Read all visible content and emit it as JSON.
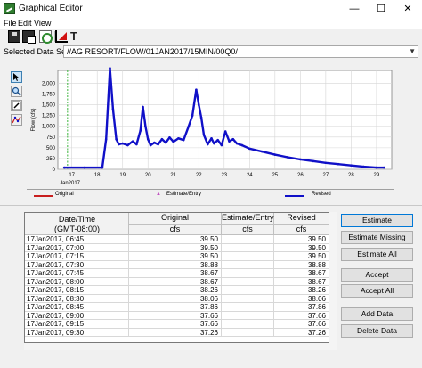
{
  "window": {
    "title": "Graphical Editor",
    "minimize": "—",
    "maximize": "☐",
    "close": "✕"
  },
  "menu": [
    "File",
    "Edit",
    "View"
  ],
  "toolbar": {
    "icons": [
      "save-icon",
      "save-as-icon",
      "refresh-icon",
      "chart-icon",
      "text-tool-icon"
    ],
    "tt_glyph": "T"
  },
  "dataset": {
    "label": "Selected Data Set:",
    "value": "//AG RESORT/FLOW/01JAN2017/15MIN/00Q0/",
    "arrow": "▼"
  },
  "tools": [
    "select-arrow-icon",
    "zoom-icon",
    "edit-pencil-icon",
    "draw-line-icon"
  ],
  "chart_data": {
    "type": "line",
    "ylabel": "Flow (cfs)",
    "xlabel": "",
    "ylim": [
      0,
      2300
    ],
    "yticks": [
      "0",
      "250",
      "500",
      "750",
      "1,000",
      "1,250",
      "1,500",
      "1,750",
      "2,000"
    ],
    "ytick_values": [
      0,
      250,
      500,
      750,
      1000,
      1250,
      1500,
      1750,
      2000
    ],
    "xlim": [
      16.45,
      29.6
    ],
    "xticks": [
      "17",
      "18",
      "19",
      "20",
      "21",
      "22",
      "23",
      "24",
      "25",
      "26",
      "27",
      "28",
      "29"
    ],
    "xtick_values": [
      17,
      18,
      19,
      20,
      21,
      22,
      23,
      24,
      25,
      26,
      27,
      28,
      29
    ],
    "xsub": "Jan2017",
    "marker": {
      "x": 16.83,
      "color": "#3cb43c"
    },
    "grid": true,
    "series": [
      {
        "name": "Revised",
        "color": "#1010c8",
        "x": [
          16.7,
          17.5,
          18.2,
          18.35,
          18.5,
          18.62,
          18.75,
          18.85,
          19.0,
          19.2,
          19.4,
          19.55,
          19.7,
          19.8,
          19.9,
          20.0,
          20.1,
          20.25,
          20.4,
          20.55,
          20.7,
          20.85,
          21.0,
          21.2,
          21.4,
          21.6,
          21.75,
          21.9,
          22.0,
          22.1,
          22.2,
          22.35,
          22.5,
          22.6,
          22.75,
          22.9,
          23.05,
          23.2,
          23.35,
          23.5,
          23.7,
          24.0,
          24.5,
          25.0,
          25.5,
          26.0,
          26.5,
          27.0,
          27.5,
          28.0,
          28.5,
          29.0,
          29.3
        ],
        "values": [
          40,
          40,
          40,
          700,
          2350,
          1400,
          700,
          580,
          600,
          560,
          650,
          580,
          900,
          1450,
          1000,
          700,
          560,
          620,
          580,
          700,
          620,
          740,
          640,
          720,
          680,
          1000,
          1250,
          1850,
          1500,
          1200,
          800,
          580,
          720,
          600,
          680,
          560,
          880,
          650,
          700,
          600,
          560,
          480,
          410,
          340,
          280,
          230,
          190,
          150,
          120,
          90,
          60,
          40,
          40
        ]
      }
    ]
  },
  "legend": [
    {
      "label": "Original",
      "color": "#c81e1e"
    },
    {
      "label": "Estimate/Entry",
      "color": "#c050c0"
    },
    {
      "label": "Revised",
      "color": "#1010c8"
    }
  ],
  "table": {
    "headers": {
      "date": "Date/Time",
      "date_sub": "(GMT-08:00)",
      "original": "Original",
      "original_unit": "cfs",
      "estimate": "Estimate/Entry",
      "estimate_unit": "cfs",
      "revised": "Revised",
      "revised_unit": "cfs"
    },
    "rows": [
      [
        "17Jan2017, 06:45",
        "39.50",
        "",
        "39.50"
      ],
      [
        "17Jan2017, 07:00",
        "39.50",
        "",
        "39.50"
      ],
      [
        "17Jan2017, 07:15",
        "39.50",
        "",
        "39.50"
      ],
      [
        "17Jan2017, 07:30",
        "38.88",
        "",
        "38.88"
      ],
      [
        "17Jan2017, 07:45",
        "38.67",
        "",
        "38.67"
      ],
      [
        "17Jan2017, 08:00",
        "38.67",
        "",
        "38.67"
      ],
      [
        "17Jan2017, 08:15",
        "38.26",
        "",
        "38.26"
      ],
      [
        "17Jan2017, 08:30",
        "38.06",
        "",
        "38.06"
      ],
      [
        "17Jan2017, 08:45",
        "37.86",
        "",
        "37.86"
      ],
      [
        "17Jan2017, 09:00",
        "37.66",
        "",
        "37.66"
      ],
      [
        "17Jan2017, 09:15",
        "37.66",
        "",
        "37.66"
      ],
      [
        "17Jan2017, 09:30",
        "37.26",
        "",
        "37.26"
      ]
    ]
  },
  "buttons": {
    "estimate": "Estimate",
    "estimate_missing": "Estimate Missing",
    "estimate_all": "Estimate All",
    "accept": "Accept",
    "accept_all": "Accept All",
    "add_data": "Add Data",
    "delete_data": "Delete Data"
  }
}
